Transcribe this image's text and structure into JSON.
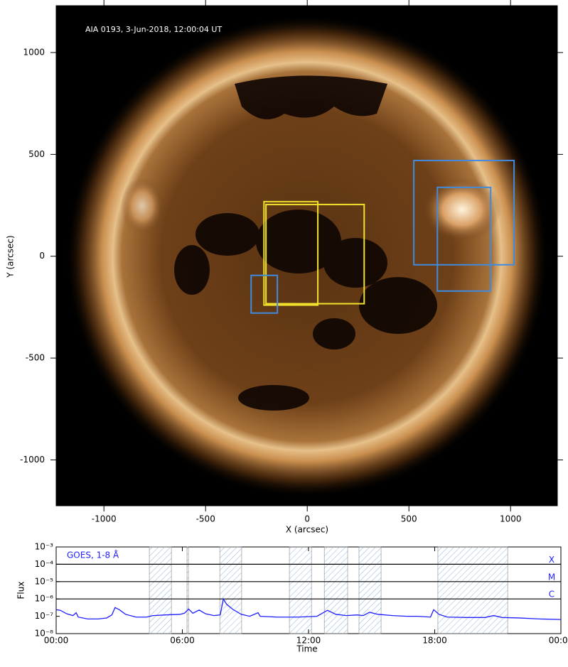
{
  "chart_data": [
    {
      "type": "image",
      "annotation": "AIA 0193, 3-Jun-2018, 12:00:04 UT",
      "xlabel": "X (arcsec)",
      "ylabel": "Y (arcsec)",
      "xlim": [
        -1235,
        1230
      ],
      "ylim": [
        -1225,
        1230
      ],
      "xticks": [
        -1000,
        -500,
        0,
        500,
        1000
      ],
      "yticks": [
        -1000,
        -500,
        0,
        500,
        1000
      ],
      "boxes": [
        {
          "color": "#f2e22e",
          "x": [
            -213,
            52
          ],
          "y": [
            -240,
            268
          ]
        },
        {
          "color": "#f2e22e",
          "x": [
            -203,
            280
          ],
          "y": [
            -233,
            254
          ]
        },
        {
          "color": "#3f8be0",
          "x": [
            -276,
            -147
          ],
          "y": [
            -279,
            -94
          ]
        },
        {
          "color": "#3f8be0",
          "x": [
            524,
            1017
          ],
          "y": [
            -42,
            470
          ]
        },
        {
          "color": "#3f8be0",
          "x": [
            640,
            902
          ],
          "y": [
            -171,
            338
          ]
        }
      ]
    },
    {
      "type": "line",
      "xlabel": "Time",
      "ylabel": "Flux",
      "log_y": true,
      "xlim": [
        0,
        24
      ],
      "xticks": [
        {
          "value": 0,
          "label": "00:00"
        },
        {
          "value": 6,
          "label": "06:00"
        },
        {
          "value": 12,
          "label": "12:00"
        },
        {
          "value": 18,
          "label": "18:00"
        },
        {
          "value": 24,
          "label": "00:00"
        }
      ],
      "ylim": [
        1e-08,
        0.001
      ],
      "yticks": [
        {
          "value": 1e-08,
          "label": "10⁻⁸"
        },
        {
          "value": 1e-07,
          "label": "10⁻⁷"
        },
        {
          "value": 1e-06,
          "label": "10⁻⁶"
        },
        {
          "value": 1e-05,
          "label": "10⁻⁵"
        },
        {
          "value": 0.0001,
          "label": "10⁻⁴"
        },
        {
          "value": 0.001,
          "label": "10⁻³"
        }
      ],
      "class_levels": [
        {
          "value": 0.0001,
          "label": "X"
        },
        {
          "value": 1e-05,
          "label": "M"
        },
        {
          "value": 1e-06,
          "label": "C"
        }
      ],
      "intervals": [
        [
          4.43,
          5.48
        ],
        [
          6.22,
          6.29
        ],
        [
          7.78,
          8.82
        ],
        [
          11.09,
          12.14
        ],
        [
          12.75,
          13.86
        ],
        [
          14.4,
          15.45
        ],
        [
          18.15,
          21.47
        ]
      ],
      "x": [
        0,
        0.2,
        0.5,
        0.8,
        0.95,
        1.05,
        1.5,
        2.0,
        2.4,
        2.65,
        2.8,
        3.0,
        3.3,
        3.8,
        4.3,
        4.6,
        5.2,
        5.9,
        6.1,
        6.3,
        6.5,
        6.8,
        7.1,
        7.5,
        7.8,
        7.95,
        8.1,
        8.4,
        8.8,
        9.2,
        9.6,
        9.7,
        10.5,
        11.5,
        12.4,
        12.9,
        13.3,
        13.8,
        14.3,
        14.6,
        14.9,
        15.3,
        16.0,
        16.7,
        17.2,
        17.8,
        17.95,
        18.2,
        18.6,
        19.5,
        20.4,
        20.8,
        21.2,
        22.0,
        23.0,
        24.0
      ],
      "series": [
        {
          "name": "GOES, 1-8 Å",
          "color": "#1f1fff",
          "values": [
            2.4e-07,
            2.2e-07,
            1.4e-07,
            1.1e-07,
            1.6e-07,
            9e-08,
            7e-08,
            7e-08,
            8e-08,
            1.2e-07,
            3.2e-07,
            2.4e-07,
            1.3e-07,
            9e-08,
            9e-08,
            1.1e-07,
            1.2e-07,
            1.3e-07,
            1.5e-07,
            2.6e-07,
            1.5e-07,
            2.3e-07,
            1.4e-07,
            1.1e-07,
            1.2e-07,
            1e-06,
            5e-07,
            2.5e-07,
            1.3e-07,
            1e-07,
            1.6e-07,
            1e-07,
            9e-08,
            9e-08,
            1e-07,
            2.2e-07,
            1.3e-07,
            1.1e-07,
            1.2e-07,
            1.1e-07,
            1.7e-07,
            1.3e-07,
            1.1e-07,
            1e-07,
            1e-07,
            9e-08,
            2.4e-07,
            1.3e-07,
            9e-08,
            8.5e-08,
            8.5e-08,
            1.1e-07,
            8.5e-08,
            8e-08,
            7e-08,
            6.5e-08
          ]
        }
      ]
    }
  ]
}
